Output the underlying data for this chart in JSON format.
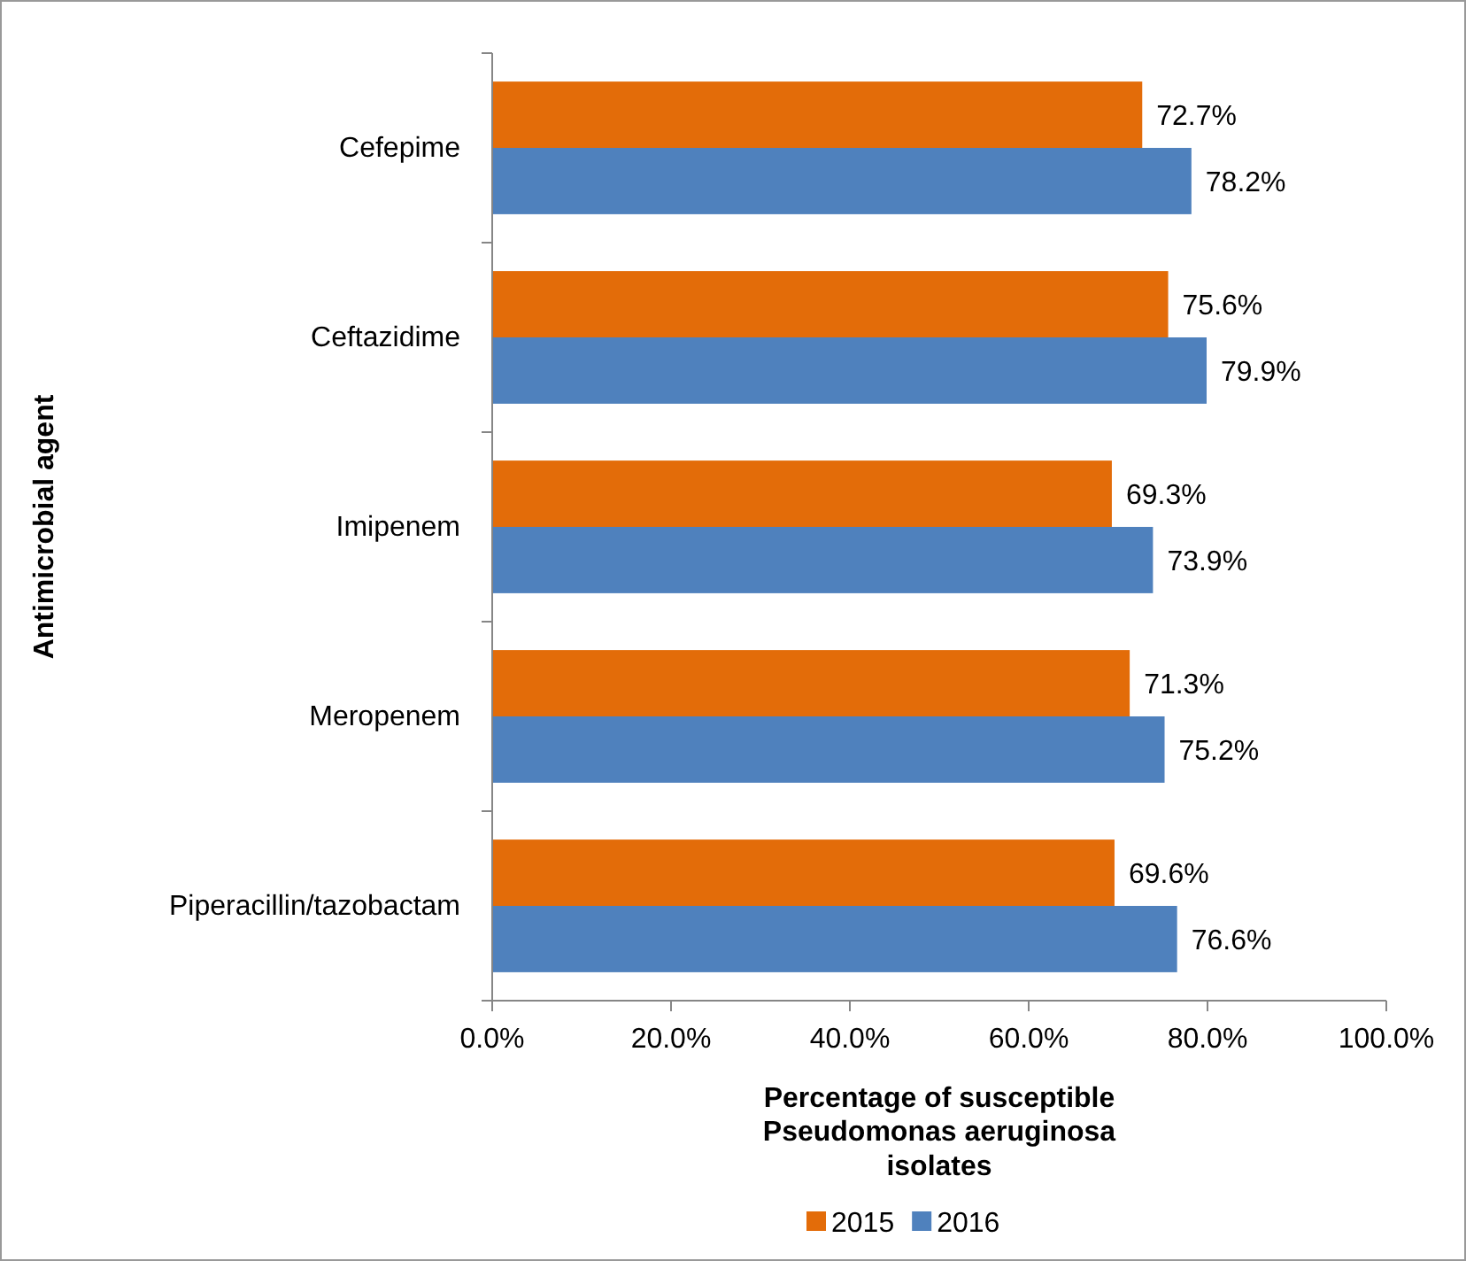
{
  "chart_data": {
    "type": "bar",
    "orientation": "horizontal",
    "xlabel": "Percentage of susceptible Pseudomonas aeruginosa isolates",
    "ylabel": "Antimicrobial agent",
    "categories": [
      "Cefepime",
      "Ceftazidime",
      "Imipenem",
      "Meropenem",
      "Piperacillin/tazobactam"
    ],
    "series": [
      {
        "name": "2015",
        "color": "#e36c09",
        "values": [
          72.7,
          75.6,
          69.3,
          71.3,
          69.6
        ],
        "value_labels": [
          "72.7%",
          "75.6%",
          "69.3%",
          "71.3%",
          "69.6%"
        ]
      },
      {
        "name": "2016",
        "color": "#4f81bd",
        "values": [
          78.2,
          79.9,
          73.9,
          75.2,
          76.6
        ],
        "value_labels": [
          "78.2%",
          "79.9%",
          "73.9%",
          "75.2%",
          "76.6%"
        ]
      }
    ],
    "xlim": [
      0,
      100
    ],
    "xticks": [
      {
        "value": 0,
        "label": "0.0%"
      },
      {
        "value": 20,
        "label": "20.0%"
      },
      {
        "value": 40,
        "label": "40.0%"
      },
      {
        "value": 60,
        "label": "60.0%"
      },
      {
        "value": 80,
        "label": "80.0%"
      },
      {
        "value": 100,
        "label": "100.0%"
      }
    ],
    "grid": false,
    "legend": "bottom"
  }
}
